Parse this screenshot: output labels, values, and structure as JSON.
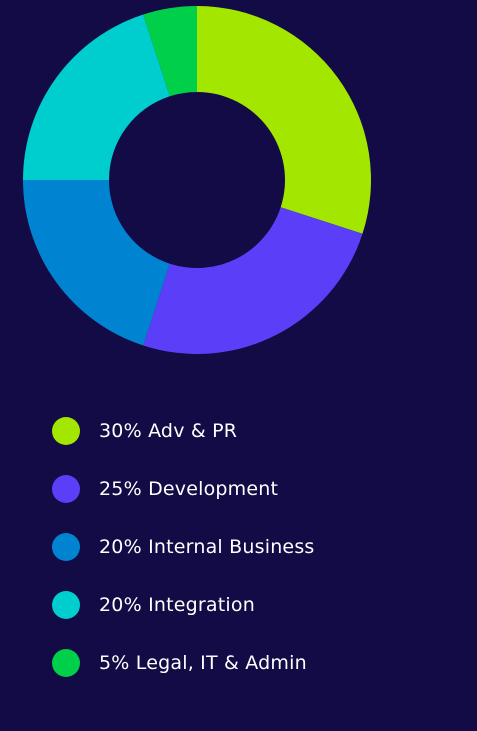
{
  "chart_data": {
    "type": "pie",
    "donut": true,
    "slices": [
      {
        "label": "30% Adv & PR",
        "value": 30,
        "color": "#a3e600"
      },
      {
        "label": "25% Development",
        "value": 25,
        "color": "#5b3ff8"
      },
      {
        "label": "20% Internal Business",
        "value": 20,
        "color": "#0083d0"
      },
      {
        "label": "20% Integration",
        "value": 20,
        "color": "#00cdce"
      },
      {
        "label": "5% Legal, IT & Admin",
        "value": 5,
        "color": "#00cf49"
      }
    ],
    "legend_position": "bottom"
  },
  "colors": {
    "background": "#130b45",
    "text": "#ffffff"
  }
}
